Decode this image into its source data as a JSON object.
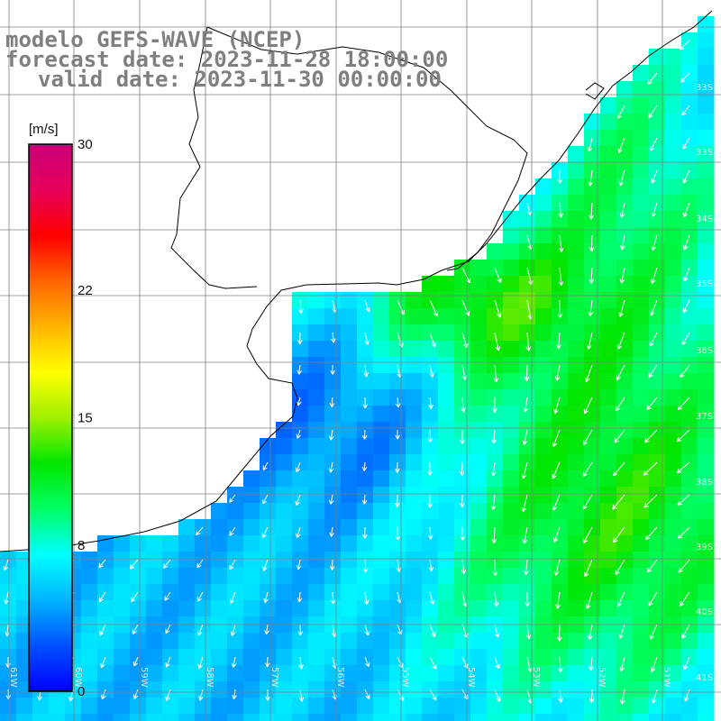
{
  "header": {
    "line1": "modelo GEFS-WAVE (NCEP)",
    "line2": "forecast date: 2023-11-28 18:00:00",
    "line3": "valid date: 2023-11-30 00:00:00"
  },
  "colorbar": {
    "unit": "[m/s]",
    "ticks": [
      {
        "label": "30",
        "value": 30
      },
      {
        "label": "22",
        "value": 22
      },
      {
        "label": "15",
        "value": 15
      },
      {
        "label": "8",
        "value": 8
      },
      {
        "label": "0",
        "value": 0
      }
    ],
    "colors": [
      "#0000ff",
      "#0050ff",
      "#00b4ff",
      "#00ffff",
      "#00ff64",
      "#00e600",
      "#a0f000",
      "#ffff00",
      "#ffb400",
      "#ff6400",
      "#ff0000",
      "#e6005a",
      "#c80078"
    ]
  },
  "lat_labels": [
    "33S",
    "33S",
    "34S",
    "35S",
    "36S",
    "37S",
    "38S",
    "39S",
    "40S",
    "41S"
  ],
  "lon_labels": [
    "61W",
    "60W",
    "59W",
    "58W",
    "57W",
    "56W",
    "55W",
    "54W",
    "53W",
    "52W",
    "51W"
  ]
}
